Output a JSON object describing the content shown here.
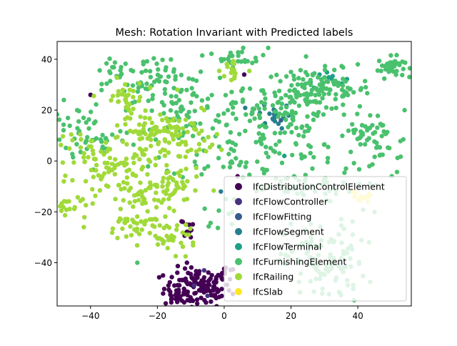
{
  "chart_data": {
    "type": "scatter",
    "title": "Mesh: Rotation Invariant with Predicted labels",
    "xlabel": "",
    "ylabel": "",
    "xlim": [
      -50,
      56
    ],
    "ylim": [
      -57,
      47
    ],
    "xticks": [
      -40,
      -20,
      0,
      20,
      40
    ],
    "yticks": [
      -40,
      -20,
      0,
      20,
      40
    ],
    "xtick_labels": [
      "−40",
      "−20",
      "0",
      "20",
      "40"
    ],
    "ytick_labels": [
      "−40",
      "−20",
      "0",
      "20",
      "40"
    ],
    "grid": false,
    "legend_position": "lower-right",
    "series": [
      {
        "name": "IfcDistributionControlElement",
        "color": "#440154",
        "clusters": [
          [
            -8,
            -50,
            5,
            4,
            130
          ],
          [
            -12,
            -26,
            2,
            2,
            10
          ],
          [
            -14,
            -52,
            2,
            2,
            12
          ],
          [
            2,
            -44,
            2,
            2,
            8
          ]
        ],
        "points": [
          [
            -40,
            26
          ],
          [
            6,
            34
          ],
          [
            -10,
            -30
          ],
          [
            4,
            -6
          ]
        ]
      },
      {
        "name": "IfcFlowController",
        "color": "#46327e",
        "clusters": [],
        "points": [
          [
            -6,
            -43
          ],
          [
            -9,
            -49
          ],
          [
            -5,
            -53
          ]
        ]
      },
      {
        "name": "IfcFlowFitting",
        "color": "#365c8d",
        "clusters": [],
        "points": [
          [
            15,
            20
          ],
          [
            17,
            16
          ]
        ]
      },
      {
        "name": "IfcFlowSegment",
        "color": "#277f8e",
        "clusters": [
          [
            15,
            18,
            2.5,
            2.5,
            18
          ]
        ],
        "points": [
          [
            -1,
            -12
          ],
          [
            12,
            22
          ]
        ]
      },
      {
        "name": "IfcFlowTerminal",
        "color": "#1fa187",
        "clusters": [
          [
            30,
            33,
            3,
            2,
            10
          ]
        ],
        "points": [
          [
            36,
            -9
          ],
          [
            18,
            2
          ]
        ]
      },
      {
        "name": "IfcFurnishingElement",
        "color": "#4ac16d",
        "clusters": [
          [
            50,
            37,
            2,
            2,
            40
          ],
          [
            5,
            41,
            4,
            2,
            25
          ],
          [
            28,
            28,
            8,
            4,
            120
          ],
          [
            10,
            20,
            10,
            4,
            60
          ],
          [
            25,
            10,
            14,
            6,
            70
          ],
          [
            45,
            5,
            6,
            6,
            40
          ],
          [
            -20,
            30,
            8,
            6,
            70
          ],
          [
            -12,
            18,
            6,
            6,
            40
          ],
          [
            -38,
            8,
            6,
            4,
            30
          ],
          [
            2,
            5,
            10,
            6,
            50
          ],
          [
            20,
            -10,
            10,
            3,
            50
          ],
          [
            30,
            -40,
            6,
            8,
            110
          ],
          [
            -30,
            34,
            5,
            4,
            20
          ],
          [
            -45,
            14,
            4,
            4,
            20
          ],
          [
            44,
            12,
            3,
            2,
            15
          ],
          [
            0,
            -20,
            3,
            3,
            10
          ]
        ],
        "points": [
          [
            -48,
            24
          ],
          [
            -44,
            20
          ],
          [
            -15,
            36
          ],
          [
            20,
            35
          ],
          [
            40,
            38
          ],
          [
            -26,
            -40
          ],
          [
            45,
            -20
          ],
          [
            54,
            20
          ]
        ]
      },
      {
        "name": "IfcRailing",
        "color": "#a0da39",
        "clusters": [
          [
            -30,
            24,
            3,
            4,
            35
          ],
          [
            -23,
            12,
            3,
            3,
            40
          ],
          [
            -15,
            12,
            3,
            3,
            30
          ],
          [
            -40,
            3,
            6,
            5,
            40
          ],
          [
            -33,
            -5,
            5,
            4,
            45
          ],
          [
            -23,
            -14,
            4,
            4,
            50
          ],
          [
            -26,
            -26,
            5,
            3,
            40
          ],
          [
            -16,
            -30,
            4,
            3,
            30
          ],
          [
            -46,
            -18,
            4,
            3,
            25
          ],
          [
            -15,
            -10,
            4,
            4,
            30
          ],
          [
            -8,
            8,
            4,
            5,
            20
          ],
          [
            3,
            36,
            2,
            3,
            15
          ],
          [
            -26,
            2,
            4,
            3,
            20
          ],
          [
            -14,
            2,
            3,
            3,
            15
          ]
        ],
        "points": [
          [
            -48,
            -8
          ],
          [
            -42,
            -26
          ],
          [
            -32,
            14
          ],
          [
            -6,
            20
          ],
          [
            -14,
            28
          ]
        ]
      },
      {
        "name": "IfcSlab",
        "color": "#fde725",
        "clusters": [
          [
            41,
            -14,
            2,
            1.2,
            12
          ]
        ],
        "points": [
          [
            39,
            -12
          ],
          [
            43,
            -16
          ]
        ]
      }
    ]
  }
}
